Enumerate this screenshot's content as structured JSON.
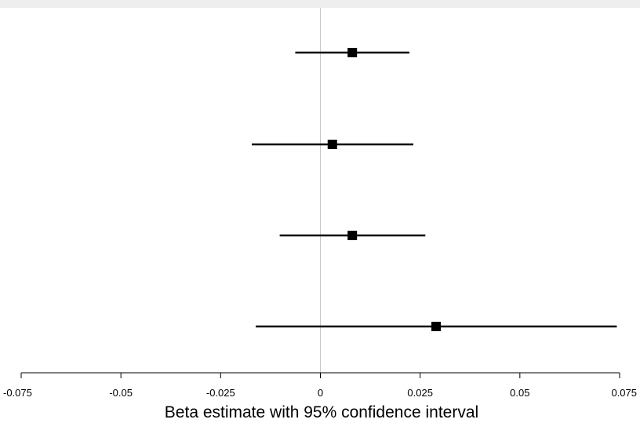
{
  "chart_data": {
    "type": "forest",
    "title": "",
    "xlabel": "Beta estimate with 95% confidence interval",
    "ylabel": "",
    "xlim": [
      -0.075,
      0.075
    ],
    "xticks": [
      {
        "value": -0.075,
        "label": "-0.075"
      },
      {
        "value": -0.05,
        "label": "-0.05"
      },
      {
        "value": -0.025,
        "label": "-0.025"
      },
      {
        "value": 0,
        "label": "0"
      },
      {
        "value": 0.025,
        "label": "0.025"
      },
      {
        "value": 0.05,
        "label": "0.05"
      },
      {
        "value": 0.075,
        "label": "0.075"
      }
    ],
    "reference_line": 0,
    "grid": false,
    "estimates": [
      {
        "estimate": 0.008,
        "lower": -0.0063,
        "upper": 0.0223
      },
      {
        "estimate": 0.003,
        "lower": -0.0172,
        "upper": 0.0233
      },
      {
        "estimate": 0.008,
        "lower": -0.0102,
        "upper": 0.0263
      },
      {
        "estimate": 0.029,
        "lower": -0.0162,
        "upper": 0.0743
      }
    ],
    "colors": {
      "marker": "#000000",
      "interval": "#000000",
      "axis": "#000000",
      "reference_line": "#c8c8c8",
      "top_band": "#eeeeee"
    }
  }
}
